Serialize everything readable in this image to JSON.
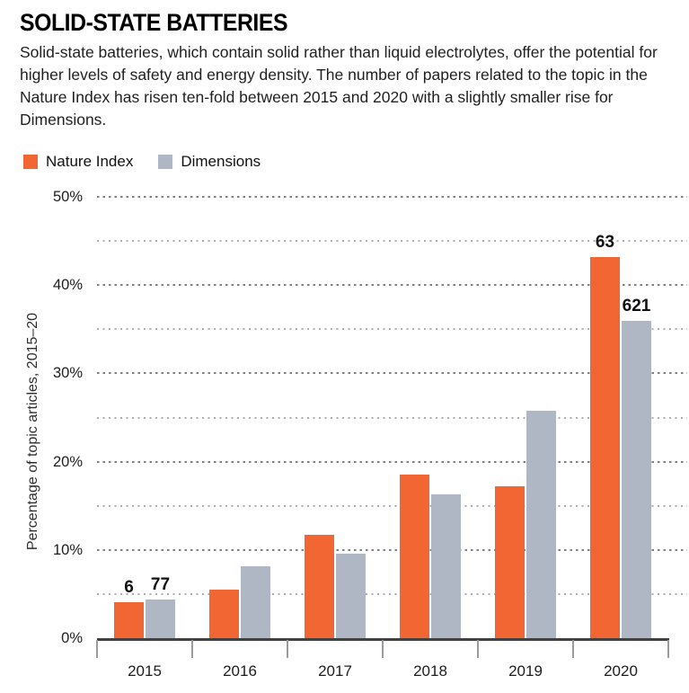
{
  "header": {
    "title": "SOLID-STATE BATTERIES",
    "description": "Solid-state batteries, which contain solid rather than liquid electrolytes, offer the potential for higher levels of safety and energy density. The number of papers related to the topic in the Nature Index has risen ten-fold between 2015 and 2020 with a slightly smaller rise for Dimensions."
  },
  "legend": {
    "items": [
      {
        "label": "Nature Index",
        "color": "#f16632"
      },
      {
        "label": "Dimensions",
        "color": "#aeb7c3"
      }
    ]
  },
  "chart_data": {
    "type": "bar",
    "title": "SOLID-STATE BATTERIES",
    "categories": [
      "2015",
      "2016",
      "2017",
      "2018",
      "2019",
      "2020"
    ],
    "series": [
      {
        "name": "Nature Index",
        "color": "#f16632",
        "values": [
          4.1,
          5.5,
          11.7,
          18.5,
          17.2,
          43.2
        ],
        "bar_count_labels": [
          "6",
          null,
          null,
          null,
          null,
          "63"
        ]
      },
      {
        "name": "Dimensions",
        "color": "#aeb7c3",
        "values": [
          4.4,
          8.1,
          9.6,
          16.3,
          25.8,
          35.9
        ],
        "bar_count_labels": [
          "77",
          null,
          null,
          null,
          null,
          "621"
        ]
      }
    ],
    "xlabel": "",
    "ylabel": "Percentage of topic articles, 2015–20",
    "ylim": [
      0,
      50
    ],
    "yticks": {
      "values": [
        0,
        10,
        20,
        30,
        40,
        50
      ],
      "labels": [
        "0%",
        "10%",
        "20%",
        "30%",
        "40%",
        "50%"
      ]
    },
    "grid_values": [
      5,
      10,
      15,
      20,
      25,
      30,
      35,
      40,
      45,
      50
    ],
    "grid": "horizontal-dotted",
    "legend_position": "top-left",
    "axis_color": "#414141",
    "tick_color": "#9b9b9b"
  }
}
